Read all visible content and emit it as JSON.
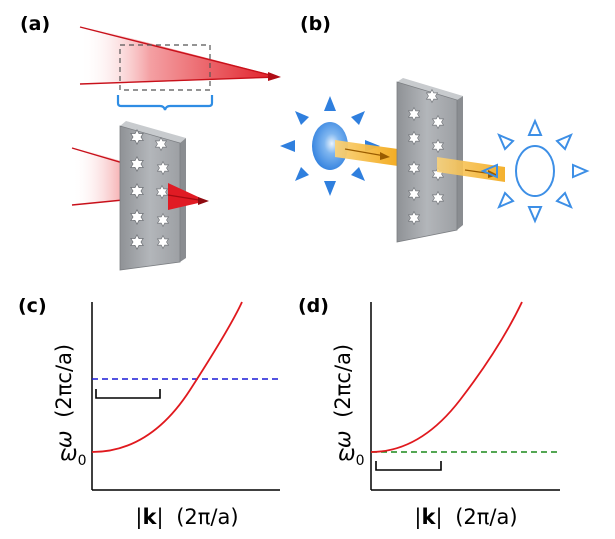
{
  "panels": {
    "a": {
      "label": "(a)"
    },
    "b": {
      "label": "(b)"
    },
    "c": {
      "label": "(c)",
      "ylabel_symbol": "ω",
      "ylabel_units": "(2πc/a)",
      "ytick_symbol": "ω",
      "ytick_sub": "0",
      "xlabel_bar_left": "|",
      "xlabel_k": "k",
      "xlabel_bar_right": "|",
      "xlabel_units": "(2π/a)",
      "curve_color": "#e0191e",
      "line_color": "#1a1ad6"
    },
    "d": {
      "label": "(d)",
      "ylabel_symbol": "ω",
      "ylabel_units": "(2πc/a)",
      "ytick_symbol": "ω",
      "ytick_sub": "0",
      "xlabel_bar_left": "|",
      "xlabel_k": "k",
      "xlabel_bar_right": "|",
      "xlabel_units": "(2π/a)",
      "curve_color": "#e0191e",
      "line_color": "#1a8a1a"
    }
  },
  "colors": {
    "beam_red": "#e01b24",
    "bracket_blue": "#2f8de4",
    "sun_blue": "#3d8fe6",
    "slab_gray": "#a6a9ad",
    "beam_orange": "#f5b21d"
  },
  "icons": [
    "sun-icon",
    "sun-outline-icon",
    "star-hole-icon"
  ]
}
